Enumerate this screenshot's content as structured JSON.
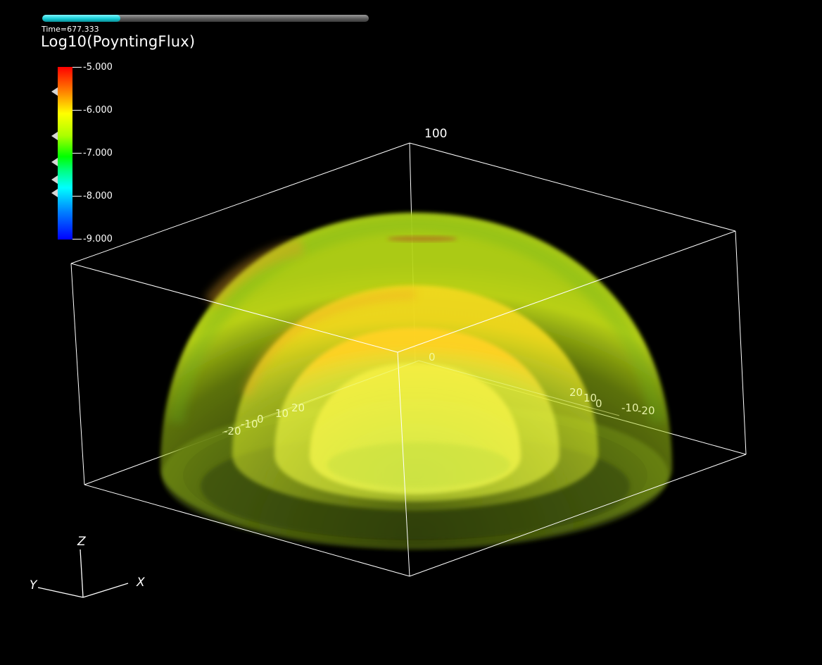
{
  "timestep": {
    "label": "Time=677.333",
    "progress": 0.24
  },
  "variable": {
    "title": "Log10(PoyntingFlux)"
  },
  "colorbar": {
    "labels": [
      "-5.000",
      "-6.000",
      "-7.000",
      "-8.000",
      "-9.000"
    ],
    "colors": [
      "#ff0000",
      "#ffff00",
      "#00ff00",
      "#00ffff",
      "#0000ff"
    ]
  },
  "bounding_box": {
    "z_max_label": "100",
    "origin_label": "0"
  },
  "axis_ticks": {
    "left": [
      "-20",
      "-10",
      "0",
      "10",
      "20"
    ],
    "right": [
      "20",
      "10",
      "0",
      "-10",
      "-20"
    ]
  },
  "triad": {
    "x": "X",
    "y": "Y",
    "z": "Z"
  }
}
